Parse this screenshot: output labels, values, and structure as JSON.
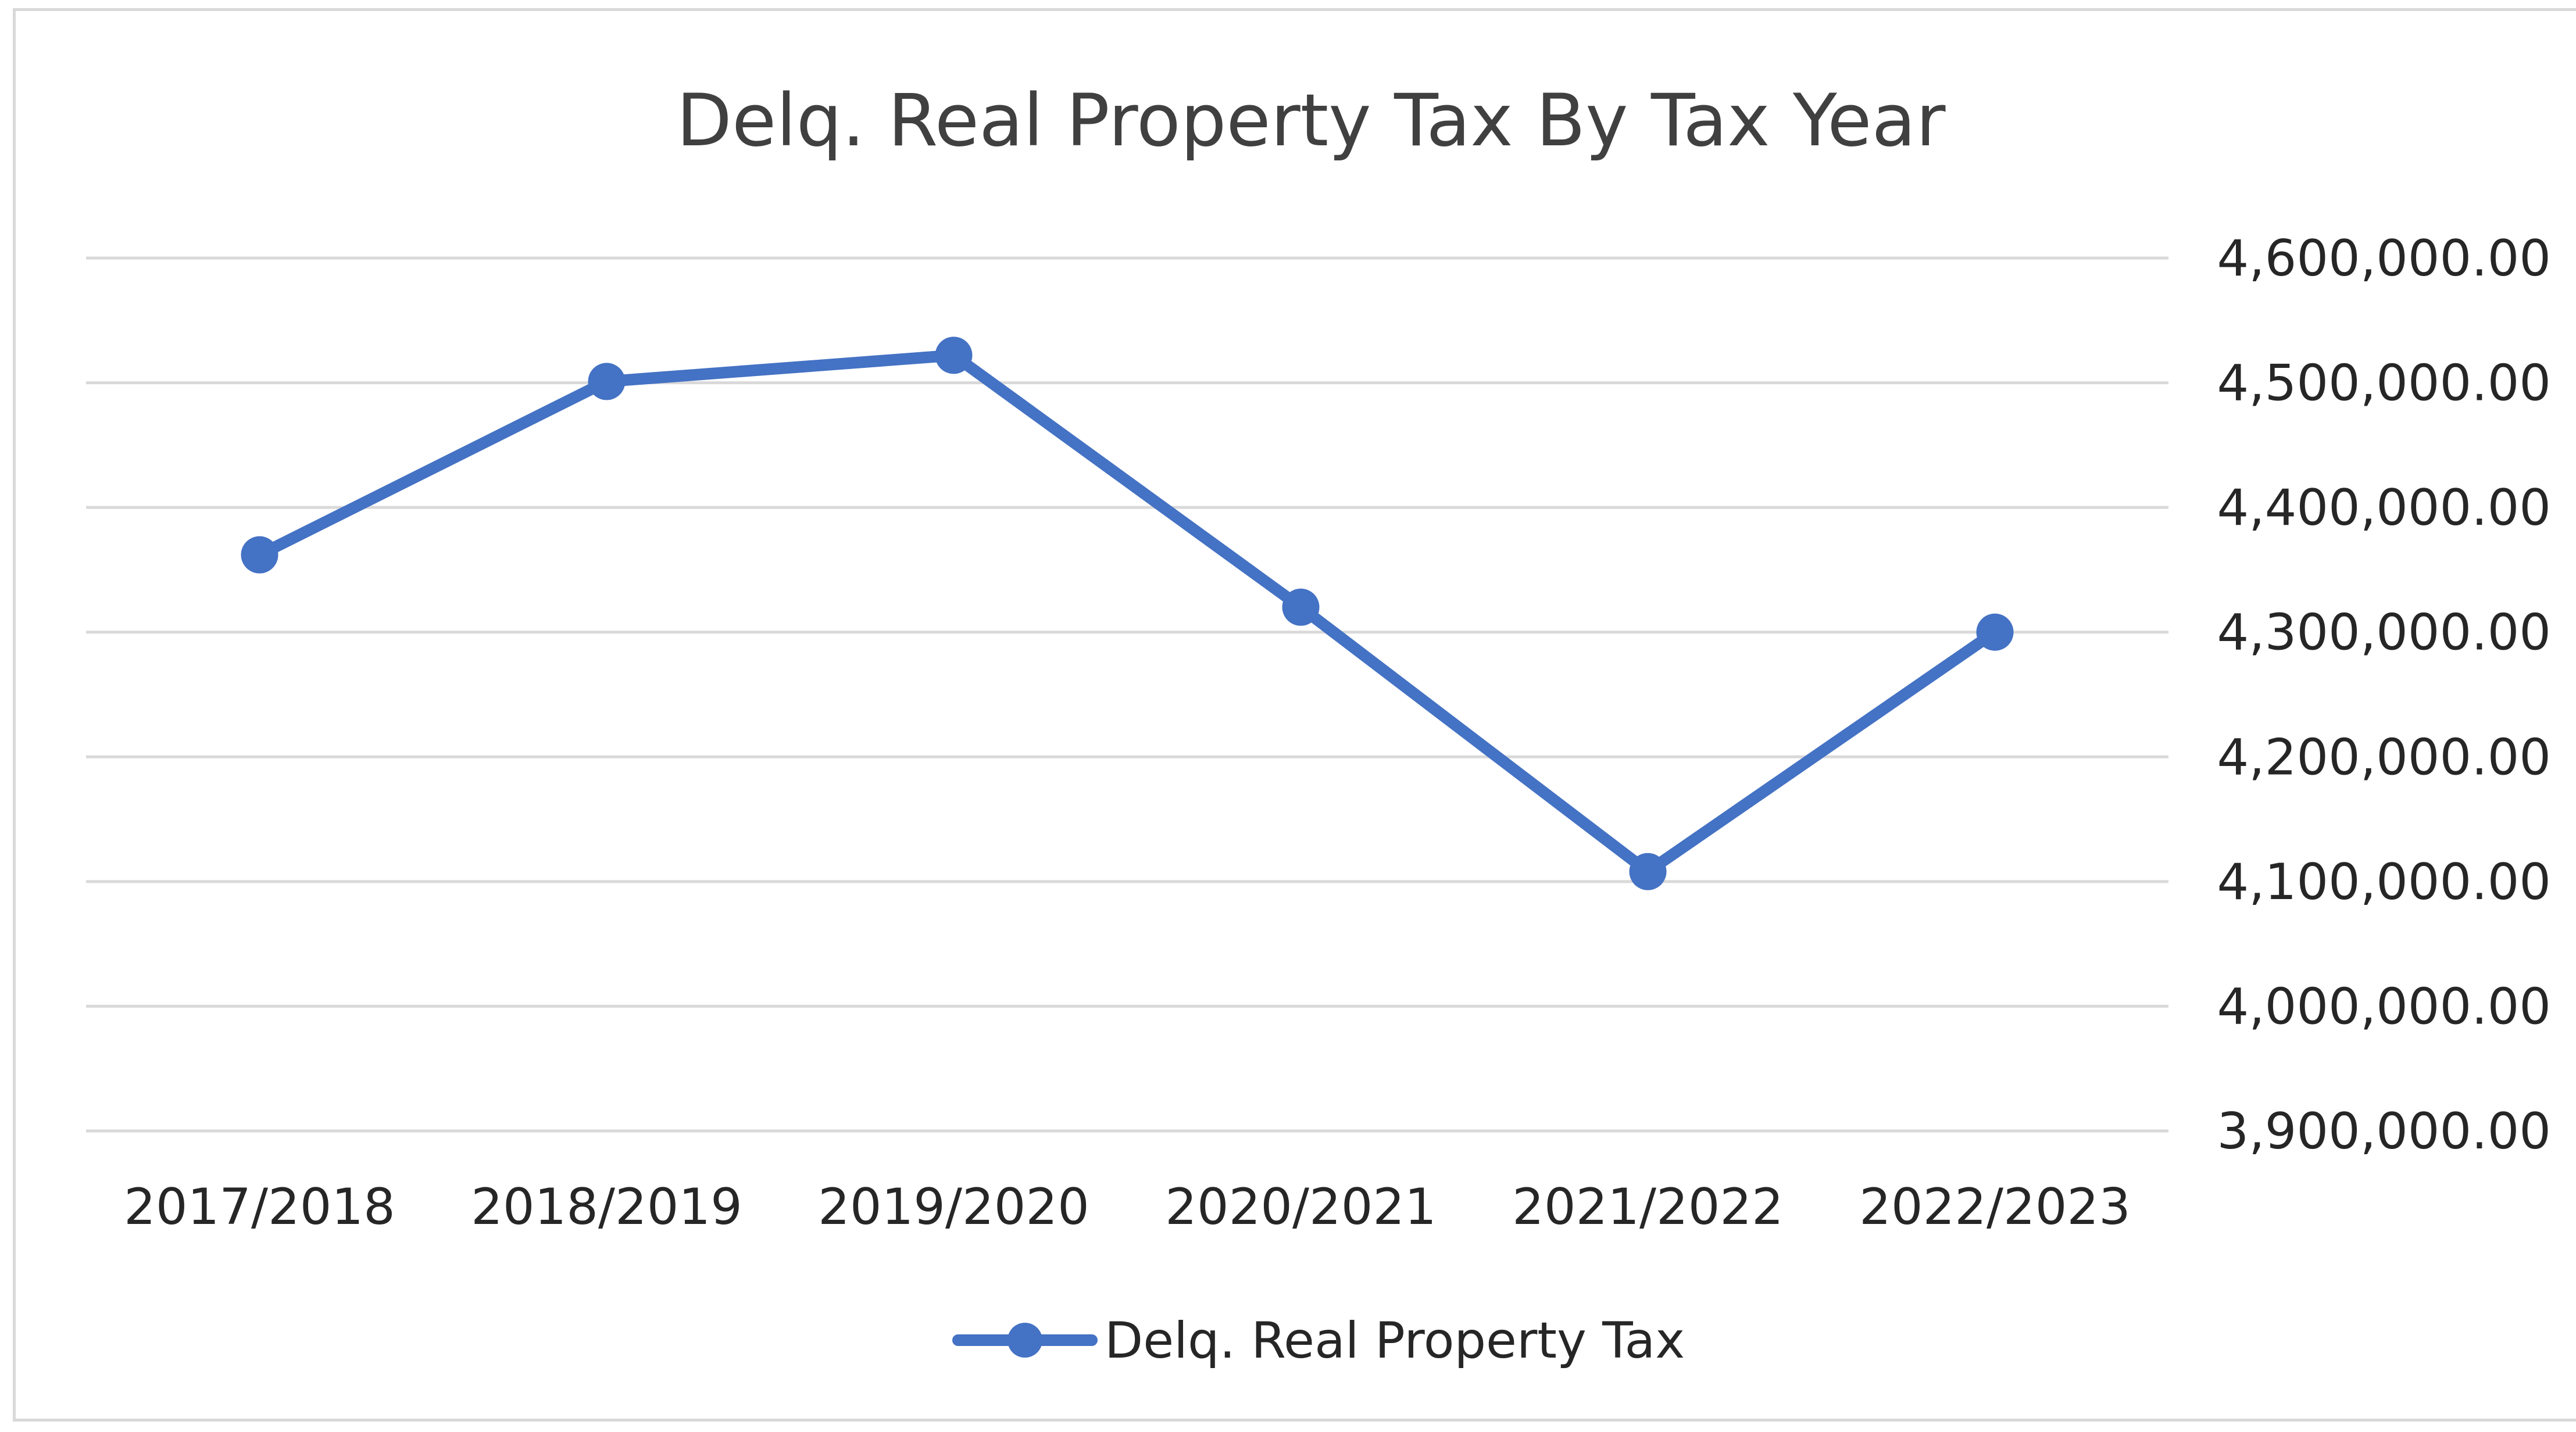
{
  "chart_data": {
    "type": "line",
    "title": "Delq. Real  Property Tax By Tax Year",
    "xlabel": "",
    "ylabel": "",
    "categories": [
      "2017/2018",
      "2018/2019",
      "2019/2020",
      "2020/2021",
      "2021/2022",
      "2022/2023"
    ],
    "series": [
      {
        "name": "Delq. Real  Property Tax",
        "values": [
          4362000,
          4501000,
          4522000,
          4320000,
          4108000,
          4300000
        ],
        "color": "#4472c4"
      }
    ],
    "ylim": [
      3900000,
      4600000
    ],
    "yticks": [
      4600000,
      4500000,
      4400000,
      4300000,
      4200000,
      4100000,
      4000000,
      3900000
    ],
    "ytick_labels": [
      "4,600,000.00",
      "4,500,000.00",
      "4,400,000.00",
      "4,300,000.00",
      "4,200,000.00",
      "4,100,000.00",
      "4,000,000.00",
      "3,900,000.00"
    ],
    "y_axis_side": "right",
    "grid": true,
    "legend_position": "bottom",
    "gridline_color": "#d9d9d9"
  }
}
